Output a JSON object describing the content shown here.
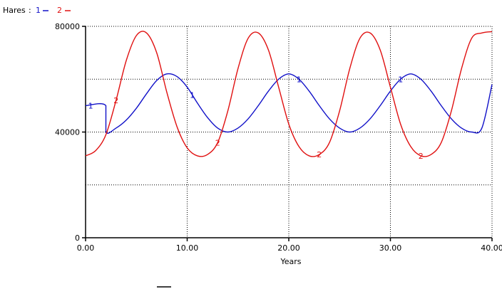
{
  "chart_data": {
    "type": "line",
    "ylabel": "Hares",
    "xlabel": "Years",
    "xlim": [
      0,
      40
    ],
    "ylim": [
      0,
      80000
    ],
    "x_ticks": [
      0,
      10,
      20,
      30,
      40
    ],
    "x_tick_labels": [
      "0.00",
      "10.00",
      "20.00",
      "30.00",
      "40.00"
    ],
    "y_ticks": [
      0,
      40000,
      80000
    ],
    "y_tick_labels": [
      "0",
      "40000",
      "80000"
    ],
    "grid": true,
    "legend_position": "top-left",
    "series": [
      {
        "name": "1",
        "color": "#1010c8",
        "x": [
          0,
          2,
          2,
          3,
          4,
          5,
          6,
          7,
          8,
          9,
          10,
          11,
          12,
          13,
          14,
          15,
          16,
          17,
          18,
          19,
          20,
          21,
          22,
          23,
          24,
          25,
          26,
          27,
          28,
          29,
          30,
          31,
          32,
          33,
          34,
          35,
          36,
          37,
          38,
          39,
          40
        ],
        "values": [
          50000,
          50000,
          40000,
          41500,
          44500,
          49000,
          54500,
          59500,
          62000,
          61000,
          57000,
          51000,
          45500,
          41500,
          40000,
          41500,
          45000,
          50000,
          55500,
          60000,
          62000,
          60000,
          55500,
          50000,
          45000,
          41500,
          40000,
          41500,
          45000,
          50000,
          55500,
          60000,
          62000,
          60000,
          55500,
          50000,
          45000,
          41500,
          40000,
          41500,
          58000
        ],
        "marker_labels": [
          {
            "text": "1",
            "x": 0.5
          },
          {
            "text": "1",
            "x": 10.5
          },
          {
            "text": "1",
            "x": 21
          },
          {
            "text": "1",
            "x": 31
          }
        ]
      },
      {
        "name": "2",
        "color": "#e01010",
        "x": [
          0,
          1,
          2,
          3,
          4,
          5,
          6,
          7,
          8,
          9,
          10,
          11,
          12,
          13,
          14,
          15,
          16,
          17,
          18,
          19,
          20,
          21,
          22,
          23,
          24,
          25,
          26,
          27,
          28,
          29,
          30,
          31,
          32,
          33,
          34,
          35,
          36,
          37,
          38,
          39,
          40
        ],
        "values": [
          31000,
          33000,
          39000,
          52000,
          67000,
          76500,
          77500,
          70000,
          55000,
          42000,
          34000,
          31000,
          31500,
          36000,
          48000,
          64000,
          75500,
          77500,
          71000,
          57000,
          43000,
          34500,
          31000,
          31500,
          36000,
          48000,
          64000,
          75500,
          77500,
          71000,
          57000,
          43000,
          34500,
          31000,
          31500,
          36000,
          48000,
          64000,
          75500,
          77500,
          78000
        ],
        "marker_labels": [
          {
            "text": "2",
            "x": 3
          },
          {
            "text": "2",
            "x": 13
          },
          {
            "text": "2",
            "x": 23
          },
          {
            "text": "2",
            "x": 33
          }
        ]
      }
    ]
  }
}
